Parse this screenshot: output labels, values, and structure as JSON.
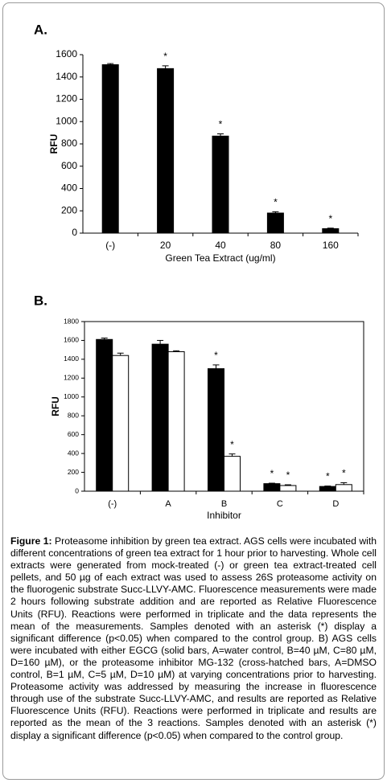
{
  "chart_data": [
    {
      "type": "bar",
      "panel": "A.",
      "ylabel": "RFU",
      "xlabel": "Green Tea Extract (ug/ml)",
      "categories": [
        "(-)",
        "20",
        "40",
        "80",
        "160"
      ],
      "ylim": [
        0,
        1600
      ],
      "yticks": [
        0,
        200,
        400,
        600,
        800,
        1000,
        1200,
        1400,
        1600
      ],
      "asterisk": "*",
      "series": [
        {
          "color": "#000000",
          "values": [
            1510,
            1475,
            870,
            180,
            40
          ],
          "errors": [
            10,
            25,
            20,
            12,
            5
          ],
          "significant": [
            false,
            true,
            true,
            true,
            true
          ]
        }
      ]
    },
    {
      "type": "bar",
      "panel": "B.",
      "ylabel": "RFU",
      "xlabel": "Inhibitor",
      "categories": [
        "(-)",
        "A",
        "B",
        "C",
        "D"
      ],
      "ylim": [
        0,
        1800
      ],
      "yticks": [
        0,
        200,
        400,
        600,
        800,
        1000,
        1200,
        1400,
        1600,
        1800
      ],
      "asterisk": "*",
      "series": [
        {
          "color": "#000000",
          "values": [
            1610,
            1560,
            1300,
            80,
            50
          ],
          "errors": [
            15,
            40,
            40,
            5,
            5
          ],
          "significant": [
            false,
            false,
            true,
            true,
            true
          ]
        },
        {
          "color": "#ffffff",
          "values": [
            1440,
            1480,
            370,
            60,
            70
          ],
          "errors": [
            25,
            10,
            25,
            8,
            20
          ],
          "significant": [
            false,
            false,
            true,
            true,
            true
          ]
        }
      ]
    }
  ],
  "caption": {
    "label": "Figure 1:",
    "text": "Proteasome inhibition by green tea extract. AGS cells were incubated with different concentrations of green tea extract for 1 hour prior to harvesting. Whole cell extracts were generated from mock-treated (-) or green tea extract-treated cell pellets, and 50 µg of each extract was used to assess 26S proteasome activity on the fluorogenic substrate Succ-LLVY-AMC. Fluorescence measurements were made 2 hours following substrate addition and are reported as Relative Fluorescence Units (RFU). Reactions were performed in triplicate and the data represents the mean of the measurements. Samples denoted with an asterisk (*) display a significant difference (p<0.05) when compared to the control group. B) AGS cells were incubated with either EGCG (solid bars, A=water control, B=40 µM, C=80 µM, D=160 µM), or the proteasome inhibitor MG-132 (cross-hatched bars, A=DMSO control, B=1 µM, C=5 µM, D=10 µM) at varying concentrations prior to harvesting. Proteasome activity was addressed by measuring the increase in fluorescence through use of the substrate Succ-LLVY-AMC, and results are reported as Relative Fluorescence Units (RFU). Reactions were performed in triplicate and results are reported as the mean of the 3 reactions. Samples denoted with an asterisk (*) display a significant difference (p<0.05) when compared to the control group."
  }
}
